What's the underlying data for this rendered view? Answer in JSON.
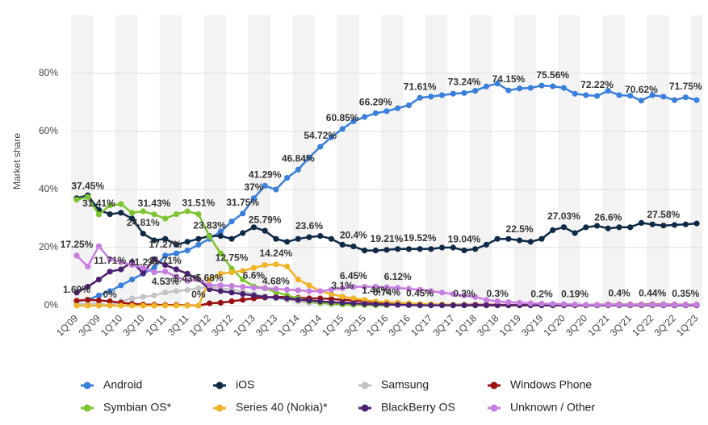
{
  "chart_data": {
    "type": "line",
    "y_label": "Market share",
    "categories": [
      "1Q'09",
      null,
      "3Q'09",
      null,
      "1Q'10",
      null,
      "3Q'10",
      null,
      "1Q'11",
      null,
      "3Q'11",
      null,
      "1Q'12",
      null,
      "3Q'12",
      null,
      "1Q'13",
      null,
      "3Q'13",
      null,
      "1Q'14",
      null,
      "3Q'14",
      null,
      "1Q'15",
      null,
      "3Q'15",
      null,
      "1Q'16",
      null,
      "3Q'16",
      null,
      "1Q'17",
      null,
      "3Q'17",
      null,
      "1Q'18",
      null,
      "3Q'18",
      null,
      "1Q'19",
      null,
      "3Q'19",
      null,
      "1Q'20",
      null,
      "3Q'20",
      null,
      "1Q'21",
      null,
      "3Q'21",
      null,
      "1Q'22",
      null,
      "3Q'22",
      null,
      "1Q'23"
    ],
    "ylim": [
      0,
      100
    ],
    "yticks": [
      {
        "value": 0,
        "label": "0%"
      },
      {
        "value": 20,
        "label": "20%"
      },
      {
        "value": 40,
        "label": "40%"
      },
      {
        "value": 60,
        "label": "60%"
      },
      {
        "value": 80,
        "label": "80%"
      }
    ],
    "grid": true,
    "legend": "bottom",
    "series": [
      {
        "name": "Android",
        "color": "#3a7fdc",
        "values": [
          1.6,
          2,
          3.5,
          5,
          7,
          9,
          11,
          13,
          17.27,
          18,
          19,
          21,
          23,
          25.5,
          29,
          31.75,
          37,
          41.29,
          40,
          44,
          46.84,
          51,
          54.72,
          58,
          60.85,
          63.5,
          65,
          66.29,
          67,
          68,
          69,
          71.61,
          72,
          72.5,
          73,
          73.24,
          74,
          75.5,
          76.5,
          74.15,
          74.8,
          75,
          75.8,
          75.56,
          75,
          73,
          72.5,
          72.22,
          74,
          72.5,
          72.3,
          70.62,
          72.5,
          72,
          70.8,
          71.75,
          70.8
        ],
        "value_labels": [
          null,
          null,
          null,
          null,
          null,
          null,
          null,
          null,
          "17.27%",
          null,
          null,
          null,
          null,
          null,
          null,
          "31.75%",
          "37%",
          "41.29%",
          null,
          null,
          "46.84%",
          null,
          "54.72%",
          null,
          "60.85%",
          null,
          null,
          "66.29%",
          null,
          null,
          null,
          "71.61%",
          null,
          null,
          null,
          "73.24%",
          null,
          null,
          null,
          "74.15%",
          null,
          null,
          null,
          "75.56%",
          null,
          null,
          null,
          "72.22%",
          null,
          null,
          null,
          "70.62%",
          null,
          null,
          null,
          "71.75%",
          null
        ]
      },
      {
        "name": "iOS",
        "color": "#0e2a47",
        "values": [
          37,
          38,
          33,
          31.5,
          32,
          30,
          24.81,
          22.5,
          23,
          21,
          22,
          23,
          24,
          24,
          23,
          25,
          27,
          25.79,
          23,
          22,
          23,
          23.6,
          24,
          23,
          21,
          20.4,
          19,
          19,
          19.21,
          19.5,
          19.5,
          19.52,
          19.5,
          20,
          20,
          19.04,
          19.5,
          21,
          23,
          23,
          22.5,
          22,
          23,
          26,
          27.03,
          25,
          27,
          27.5,
          26.6,
          27,
          27,
          28.5,
          28,
          27.58,
          27.8,
          28,
          28.3
        ],
        "value_labels": [
          null,
          null,
          null,
          null,
          null,
          null,
          "24.81%",
          null,
          null,
          null,
          null,
          null,
          null,
          null,
          null,
          null,
          null,
          "25.79%",
          null,
          null,
          null,
          "23.6%",
          null,
          null,
          null,
          "20.4%",
          null,
          null,
          "19.21%",
          null,
          null,
          "19.52%",
          null,
          null,
          null,
          "19.04%",
          null,
          null,
          null,
          null,
          "22.5%",
          null,
          null,
          null,
          "27.03%",
          null,
          null,
          null,
          "26.6%",
          null,
          null,
          null,
          null,
          "27.58%",
          null,
          null,
          null
        ]
      },
      {
        "name": "Samsung",
        "color": "#c4c4c4",
        "values": [
          0.5,
          0.6,
          0.8,
          0,
          1.5,
          2.5,
          3,
          3.5,
          4.53,
          5,
          5.43,
          6,
          6.5,
          6,
          5.5,
          4.8,
          4,
          3,
          2.5,
          2,
          1.5,
          1,
          0.8,
          0.6,
          0.5,
          0.4,
          0.3,
          0.2,
          0.2,
          0.2,
          0.2,
          0.2,
          0.2,
          0.2,
          0.2,
          0.2,
          0.2,
          0.2,
          0.2,
          0.2,
          0.2,
          0.2,
          0.2,
          0.2,
          0.2,
          0.2,
          0.2,
          0.2,
          0.2,
          0.2,
          0.2,
          0.2,
          0.2,
          0.2,
          0.2,
          0.2,
          0.2
        ],
        "value_labels": [
          null,
          null,
          null,
          "0%",
          null,
          null,
          null,
          null,
          "4.53%",
          null,
          "5.43%",
          null,
          null,
          null,
          null,
          null,
          null,
          null,
          null,
          null,
          null,
          null,
          null,
          null,
          null,
          null,
          null,
          null,
          null,
          null,
          null,
          null,
          null,
          null,
          null,
          null,
          null,
          null,
          null,
          null,
          null,
          null,
          null,
          null,
          null,
          null,
          null,
          null,
          null,
          null,
          null,
          null,
          null,
          null,
          null,
          null,
          null
        ]
      },
      {
        "name": "Windows Phone",
        "color": "#9b1010",
        "values": [
          1.69,
          2,
          1.8,
          1.5,
          1,
          0.6,
          0.4,
          0.3,
          0.2,
          0.2,
          0.1,
          0,
          0.8,
          1,
          1.5,
          2,
          2.5,
          2.8,
          3,
          3,
          2.7,
          2.5,
          2.5,
          2.3,
          2,
          1.8,
          1.5,
          1.2,
          0.74,
          0.6,
          0.5,
          0.45,
          0.4,
          0.35,
          0.3,
          0.3,
          0.3,
          0.3,
          0.3,
          0.25,
          0.2,
          0.2,
          0.2,
          0.2,
          0.2,
          0.19,
          0.2,
          0.3,
          0.4,
          0.4,
          0.4,
          0.4,
          0.44,
          0.4,
          0.4,
          0.35,
          0.35
        ],
        "value_labels": [
          "1.69%",
          null,
          null,
          null,
          null,
          null,
          null,
          null,
          null,
          null,
          null,
          "0%",
          null,
          null,
          null,
          null,
          null,
          null,
          null,
          null,
          null,
          null,
          null,
          null,
          null,
          null,
          null,
          null,
          "0.74%",
          null,
          null,
          "0.45%",
          null,
          null,
          null,
          "0.3%",
          null,
          null,
          "0.3%",
          null,
          null,
          null,
          "0.2%",
          null,
          null,
          "0.19%",
          null,
          null,
          null,
          "0.4%",
          null,
          null,
          "0.44%",
          null,
          null,
          "0.35%",
          null
        ]
      },
      {
        "name": "Symbian OS*",
        "color": "#7cc52f",
        "values": [
          36.5,
          37.45,
          31.41,
          34.5,
          35,
          32,
          32.5,
          31.43,
          30,
          31.5,
          32.5,
          31.51,
          23.83,
          18,
          12.75,
          9,
          6.6,
          6,
          4.68,
          3.5,
          2.5,
          1.5,
          1,
          0.6,
          0.4,
          0.3,
          0.2,
          0.1,
          0.1,
          null,
          null,
          null,
          null,
          null,
          null,
          null,
          null,
          null,
          null,
          null,
          null,
          null,
          null,
          null,
          null,
          null,
          null,
          null,
          null,
          null,
          null,
          null,
          null,
          null,
          null,
          null,
          null
        ],
        "value_labels": [
          null,
          "37.45%",
          "31.41%",
          null,
          null,
          null,
          null,
          "31.43%",
          null,
          null,
          null,
          "31.51%",
          "23.83%",
          null,
          "12.75%",
          null,
          "6.6%",
          null,
          "4.68%",
          null,
          null,
          null,
          null,
          null,
          null,
          null,
          null,
          null,
          null,
          null,
          null,
          null,
          null,
          null,
          null,
          null,
          null,
          null,
          null,
          null,
          null,
          null,
          null,
          null,
          null,
          null,
          null,
          null,
          null,
          null,
          null,
          null,
          null,
          null,
          null,
          null,
          null
        ]
      },
      {
        "name": "Series 40 (Nokia)*",
        "color": "#f0b429",
        "values": [
          0,
          0,
          0,
          0,
          0,
          0,
          0,
          0,
          0,
          0,
          0,
          0,
          9,
          11,
          11.5,
          12,
          13,
          14,
          14.24,
          13.5,
          9,
          7,
          5,
          4,
          3.1,
          2.5,
          2,
          1.44,
          1.2,
          1,
          0.8,
          0.6,
          0.5,
          0.4,
          0.3,
          0.2,
          0.1,
          0.1,
          0.1,
          0.1,
          0.1,
          0.1,
          0.1,
          0.1,
          0.1,
          0.1,
          0.1,
          0.1,
          0.1,
          0.1,
          0.1,
          0.1,
          0.1,
          0.1,
          0.1,
          0.1,
          0.1
        ],
        "value_labels": [
          null,
          null,
          null,
          null,
          null,
          null,
          null,
          null,
          null,
          null,
          null,
          null,
          null,
          null,
          null,
          null,
          null,
          null,
          "14.24%",
          null,
          null,
          null,
          null,
          null,
          "3.1%",
          null,
          null,
          "1.44%",
          null,
          null,
          null,
          null,
          null,
          null,
          null,
          null,
          null,
          null,
          null,
          null,
          null,
          null,
          null,
          null,
          null,
          null,
          null,
          null,
          null,
          null,
          null,
          null,
          null,
          null,
          null,
          null,
          null
        ]
      },
      {
        "name": "BlackBerry OS",
        "color": "#4a2171",
        "values": [
          4.5,
          6.5,
          9,
          11.71,
          12.5,
          15,
          11.2,
          16,
          14,
          12.5,
          11,
          9,
          5.68,
          5,
          4.5,
          4,
          3.5,
          3,
          2.8,
          2.5,
          2,
          1.8,
          1.5,
          1.2,
          1,
          0.8,
          0.6,
          0.5,
          0.4,
          0.3,
          0.2,
          0.1,
          0.1,
          0.1,
          0.1,
          0.1,
          0.1,
          0.1,
          0.1,
          0.1,
          0.1,
          0.1,
          0.1,
          0.1,
          0.1,
          0.1,
          0.1,
          0.1,
          0.1,
          0.1,
          0.1,
          0.1,
          0.1,
          0.1,
          0.1,
          0.1,
          0.1
        ],
        "value_labels": [
          null,
          null,
          null,
          "11.71%",
          null,
          null,
          "11.2%",
          null,
          null,
          null,
          null,
          null,
          "5.68%",
          null,
          null,
          null,
          null,
          null,
          null,
          null,
          null,
          null,
          null,
          null,
          null,
          null,
          null,
          null,
          null,
          null,
          null,
          null,
          null,
          null,
          null,
          null,
          null,
          null,
          null,
          null,
          null,
          null,
          null,
          null,
          null,
          null,
          null,
          null,
          null,
          null,
          null,
          null,
          null,
          null,
          null,
          null,
          null
        ]
      },
      {
        "name": "Unknown / Other",
        "color": "#c77ee0",
        "values": [
          17.25,
          13.5,
          20.5,
          16,
          15,
          14,
          13,
          11.5,
          11.71,
          10,
          8.5,
          9,
          7,
          7,
          6.8,
          6.5,
          6.2,
          6,
          5.8,
          5.5,
          5.3,
          5,
          5,
          5.5,
          6,
          6.45,
          6.5,
          6.5,
          6.3,
          6.12,
          5.8,
          5.5,
          5,
          4.5,
          4,
          3.5,
          3,
          2,
          1.5,
          1.2,
          1,
          0.8,
          0.7,
          0.6,
          0.5,
          0.4,
          0.3,
          0.3,
          0.3,
          0.3,
          0.3,
          0.3,
          0.3,
          0.3,
          0.3,
          0.3,
          0.3
        ],
        "value_labels": [
          "17.25%",
          null,
          null,
          null,
          null,
          null,
          null,
          null,
          "11.71%",
          null,
          null,
          null,
          null,
          null,
          null,
          null,
          null,
          null,
          null,
          null,
          null,
          null,
          null,
          null,
          null,
          "6.45%",
          null,
          null,
          null,
          "6.12%",
          null,
          null,
          null,
          null,
          null,
          null,
          null,
          null,
          null,
          null,
          null,
          null,
          null,
          null,
          null,
          null,
          null,
          null,
          null,
          null,
          null,
          null,
          null,
          null,
          null,
          null,
          null
        ]
      }
    ]
  }
}
